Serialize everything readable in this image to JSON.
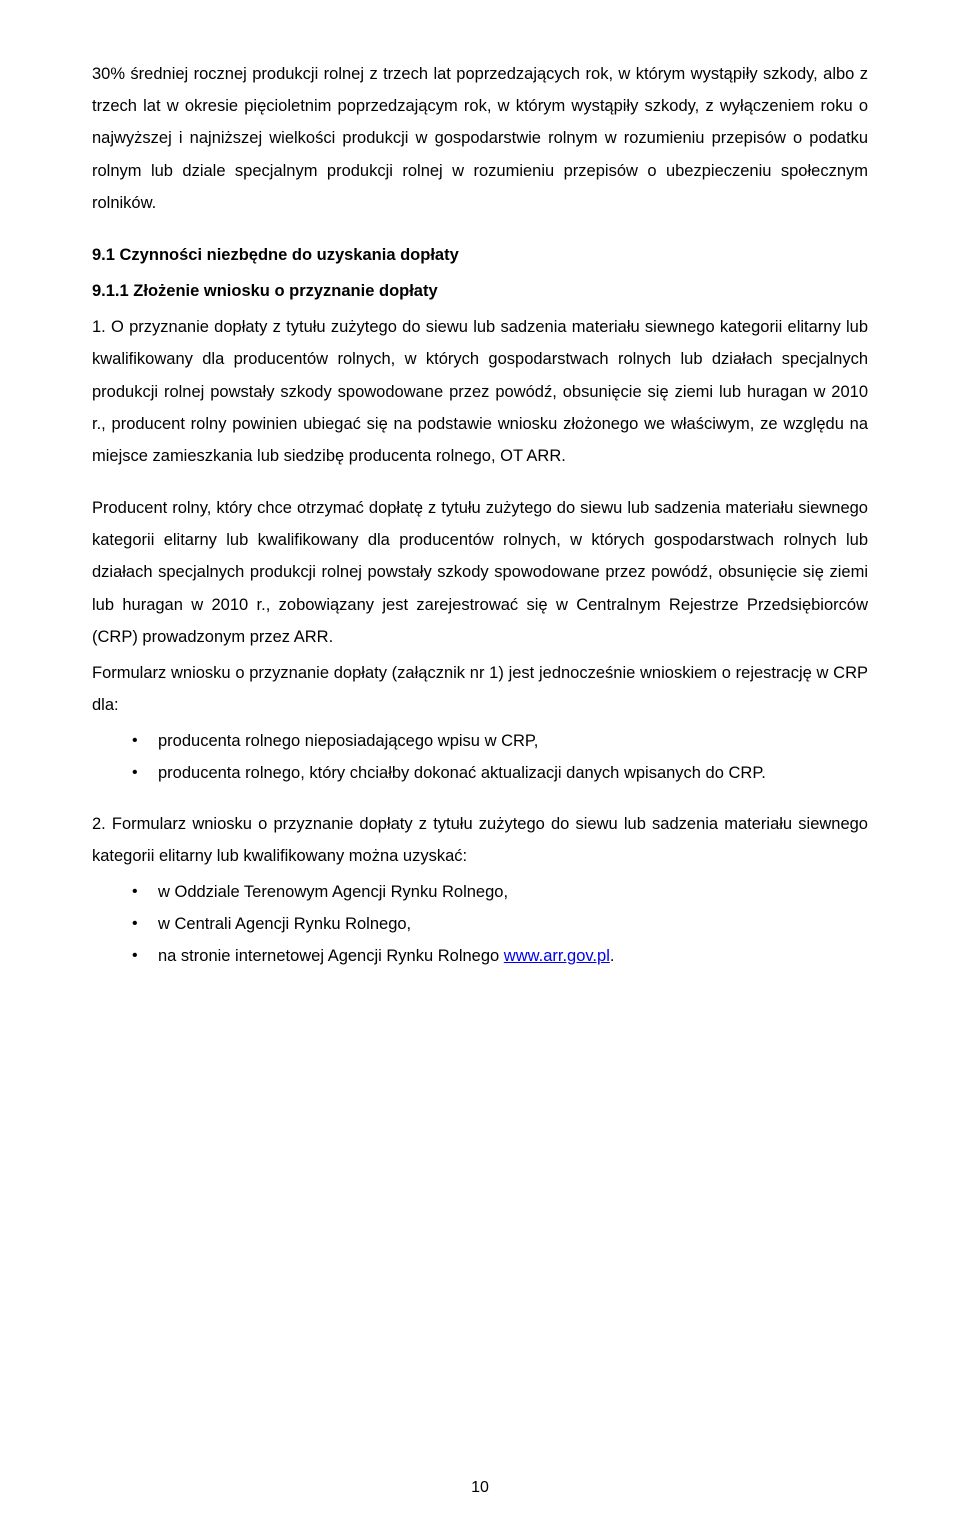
{
  "para_intro": "30% średniej rocznej produkcji rolnej z trzech lat poprzedzających rok, w którym wystąpiły szkody, albo z trzech lat w okresie pięcioletnim poprzedzającym rok, w którym wystąpiły szkody, z wyłączeniem roku o najwyższej i najniższej wielkości produkcji w gospodarstwie rolnym w rozumieniu przepisów o podatku rolnym lub dziale specjalnym produkcji rolnej w rozumieniu przepisów o ubezpieczeniu społecznym rolników.",
  "h_section": "9.1 Czynności niezbędne do uzyskania dopłaty",
  "h_subsection": "9.1.1 Złożenie wniosku o przyznanie dopłaty",
  "para1": "1. O przyznanie dopłaty z tytułu zużytego do siewu lub sadzenia materiału siewnego kategorii elitarny lub kwalifikowany dla producentów rolnych, w których gospodarstwach rolnych lub działach specjalnych produkcji rolnej powstały szkody spowodowane przez powódź, obsunięcie się ziemi lub huragan w 2010 r., producent rolny powinien ubiegać się na podstawie wniosku złożonego we właściwym, ze względu na miejsce zamieszkania lub siedzibę producenta rolnego, OT ARR.",
  "para2": "Producent rolny, który chce otrzymać dopłatę z tytułu zużytego do siewu lub sadzenia materiału siewnego kategorii elitarny lub kwalifikowany dla producentów rolnych, w których gospodarstwach rolnych lub działach specjalnych produkcji rolnej powstały szkody spowodowane przez powódź, obsunięcie się ziemi lub huragan w 2010 r., zobowiązany jest zarejestrować się w Centralnym Rejestrze Przedsiębiorców (CRP) prowadzonym przez ARR.",
  "para3": "Formularz wniosku o przyznanie dopłaty (załącznik nr 1) jest jednocześnie wnioskiem o rejestrację w CRP dla:",
  "bullets1": [
    "producenta rolnego nieposiadającego wpisu w CRP,",
    "producenta rolnego, który chciałby dokonać aktualizacji danych wpisanych do CRP."
  ],
  "para4": "2. Formularz wniosku o przyznanie dopłaty z tytułu zużytego do siewu lub sadzenia materiału siewnego kategorii elitarny lub kwalifikowany można uzyskać:",
  "bullets2": [
    "w Oddziale Terenowym Agencji Rynku Rolnego,",
    "w Centrali Agencji Rynku Rolnego,"
  ],
  "bullet2_last_prefix": "na stronie internetowej Agencji Rynku Rolnego ",
  "link_text": "www.arr.gov.pl",
  "bullet2_last_suffix": ".",
  "page_number": "10"
}
